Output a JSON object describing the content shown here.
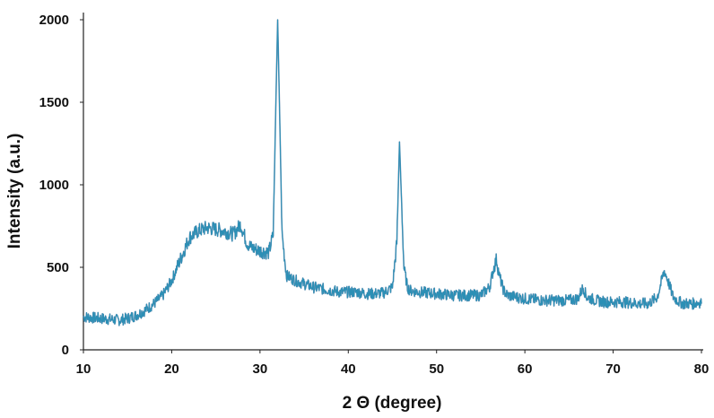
{
  "chart_data": {
    "type": "line",
    "title": "",
    "xlabel": "2 Θ (degree)",
    "ylabel": "Intensity (a.u.)",
    "xlim": [
      10,
      80
    ],
    "ylim": [
      0,
      2000
    ],
    "xticks": [
      10,
      20,
      30,
      40,
      50,
      60,
      70,
      80
    ],
    "yticks": [
      0,
      500,
      1000,
      1500,
      2000
    ],
    "grid": false,
    "legend": "none",
    "colors": {
      "line": "#2b8fb5",
      "line_dark": "#1c3f7a",
      "axis": "#222222"
    },
    "series": [
      {
        "x": [
          10,
          11,
          12,
          13,
          14,
          15,
          16,
          17,
          18,
          19,
          20,
          21,
          22,
          23,
          24,
          25,
          26,
          27,
          27.8,
          28.5,
          29,
          30,
          31,
          31.5,
          31.8,
          32.0,
          32.2,
          32.5,
          33,
          34,
          35,
          36,
          37,
          38,
          39,
          40,
          41,
          42,
          43,
          44,
          45,
          45.5,
          45.8,
          46.0,
          46.3,
          46.7,
          47,
          48,
          49,
          50,
          51,
          52,
          53,
          54,
          55,
          56,
          56.5,
          56.8,
          57.1,
          57.6,
          58,
          59,
          60,
          61,
          62,
          63,
          64,
          65,
          66,
          66.6,
          67,
          68,
          69,
          70,
          71,
          72,
          73,
          74,
          75,
          75.4,
          75.8,
          76.2,
          76.8,
          77.5,
          78,
          79,
          80
        ],
        "y": [
          200,
          195,
          190,
          185,
          180,
          190,
          210,
          240,
          280,
          330,
          420,
          550,
          680,
          720,
          740,
          730,
          720,
          700,
          760,
          650,
          620,
          600,
          590,
          700,
          1500,
          2000,
          1500,
          700,
          450,
          420,
          400,
          380,
          370,
          360,
          350,
          350,
          350,
          340,
          340,
          345,
          380,
          650,
          1260,
          950,
          500,
          380,
          360,
          350,
          345,
          340,
          335,
          330,
          330,
          330,
          330,
          380,
          500,
          550,
          450,
          360,
          330,
          320,
          310,
          305,
          300,
          300,
          300,
          300,
          310,
          380,
          320,
          300,
          290,
          290,
          290,
          285,
          280,
          280,
          320,
          400,
          480,
          420,
          320,
          290,
          280,
          280,
          290
        ]
      }
    ]
  }
}
